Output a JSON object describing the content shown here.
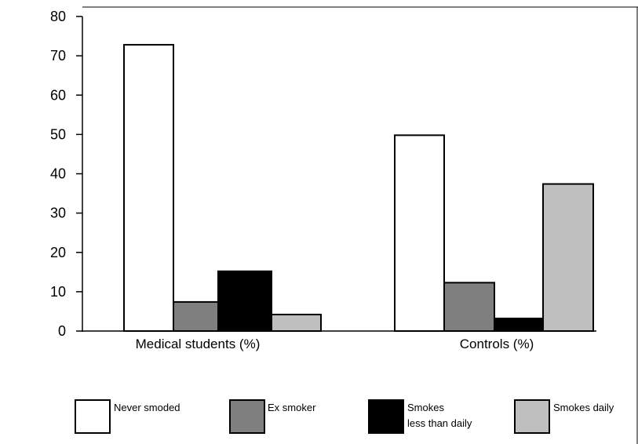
{
  "chart_data": {
    "type": "bar",
    "title": "",
    "xlabel": "",
    "ylabel": "",
    "ylim": [
      0,
      80
    ],
    "yticks": [
      0,
      10,
      20,
      30,
      40,
      50,
      60,
      70,
      80
    ],
    "categories": [
      "Medical students (%)",
      "Controls (%)"
    ],
    "series": [
      {
        "name": "Never smoded",
        "color": "#ffffff",
        "values": [
          72.8,
          49.8
        ]
      },
      {
        "name": "Ex smoker",
        "color": "#7f7f7f",
        "values": [
          7.4,
          12.3
        ]
      },
      {
        "name": "Smokes less than daily",
        "label_lines": [
          "Smokes",
          "less than daily"
        ],
        "color": "#000000",
        "values": [
          15.2,
          3.2
        ]
      },
      {
        "name": "Smokes daily",
        "color": "#bfbfbf",
        "values": [
          4.2,
          37.4
        ]
      }
    ],
    "legend_position": "bottom",
    "grid": false
  }
}
